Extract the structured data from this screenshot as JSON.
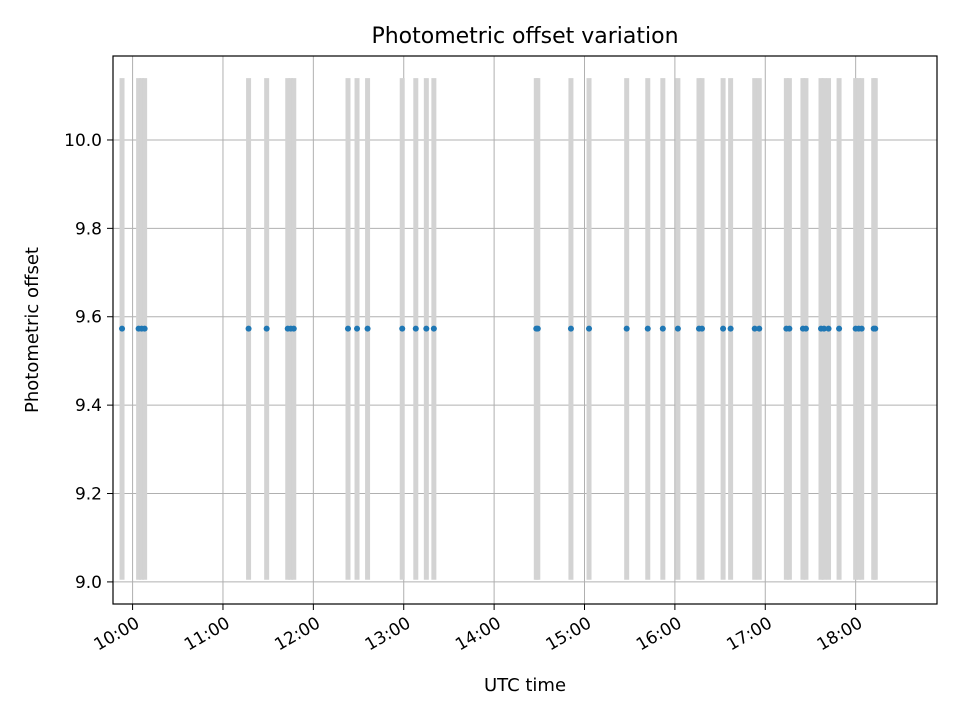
{
  "chart_data": {
    "type": "scatter",
    "title": "Photometric offset variation",
    "xlabel": "UTC time",
    "ylabel": "Photometric offset",
    "xlim": [
      "09:47",
      "18:54"
    ],
    "ylim": [
      8.95,
      10.19
    ],
    "xticks": [
      "10:00",
      "11:00",
      "12:00",
      "13:00",
      "14:00",
      "15:00",
      "16:00",
      "17:00",
      "18:00"
    ],
    "yticks": [
      9.0,
      9.2,
      9.4,
      9.6,
      9.8,
      10.0
    ],
    "yticklabels": [
      "9.0",
      "9.2",
      "9.4",
      "9.6",
      "9.8",
      "10.0"
    ],
    "grid": true,
    "points": {
      "x": [
        "09:53",
        "10:04",
        "10:06",
        "10:08",
        "11:17",
        "11:29",
        "11:43",
        "11:45",
        "11:47",
        "12:23",
        "12:29",
        "12:36",
        "12:59",
        "13:08",
        "13:15",
        "13:20",
        "14:28",
        "14:29",
        "14:51",
        "15:03",
        "15:28",
        "15:42",
        "15:52",
        "16:02",
        "16:16",
        "16:18",
        "16:32",
        "16:37",
        "16:53",
        "16:56",
        "17:14",
        "17:16",
        "17:25",
        "17:27",
        "17:37",
        "17:39",
        "17:42",
        "17:49",
        "18:00",
        "18:02",
        "18:04",
        "18:12",
        "18:13"
      ],
      "y": 9.573,
      "color": "#1f77b4"
    },
    "error_bars": {
      "lower": 9.005,
      "upper": 10.14,
      "color": "#d3d3d3"
    }
  }
}
